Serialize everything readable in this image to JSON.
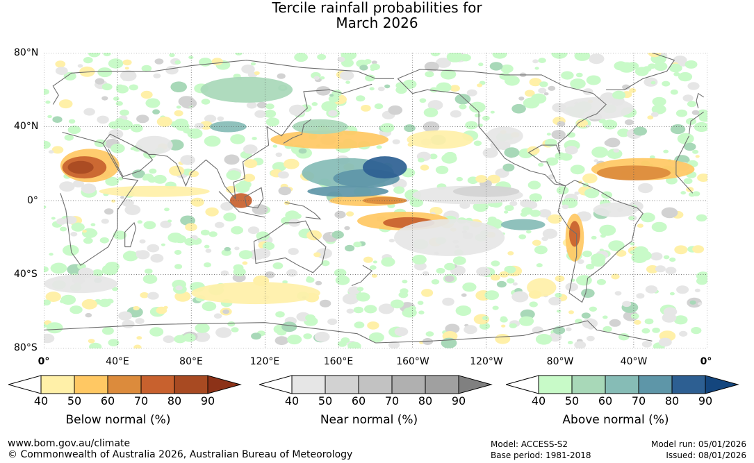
{
  "header": {
    "title_line1": "Tercile rainfall probabilities for",
    "title_line2": "March 2026"
  },
  "map": {
    "lat_labels": [
      "80°N",
      "40°N",
      "0°",
      "40°S",
      "80°S"
    ],
    "lon_labels": [
      "0°",
      "40°E",
      "80°E",
      "120°E",
      "160°E",
      "160°W",
      "120°W",
      "80°W",
      "40°W",
      "0°"
    ],
    "colors": {
      "below": [
        "#fff0a8",
        "#ffc863",
        "#dc8b3c",
        "#c8612e",
        "#a84a22",
        "#8c3218"
      ],
      "near": [
        "#e6e6e6",
        "#d2d2d2",
        "#c2c2c2",
        "#b0b0b0",
        "#a0a0a0",
        "#808080"
      ],
      "above": [
        "#c8fac8",
        "#a8d8b8",
        "#86bcb6",
        "#5e96a8",
        "#2d5f92",
        "#14467e"
      ],
      "coast": "#6e6e6e"
    }
  },
  "legends": [
    {
      "title": "Below normal (%)",
      "ticks": [
        "40",
        "50",
        "60",
        "70",
        "80",
        "90"
      ],
      "palette": "below"
    },
    {
      "title": "Near normal (%)",
      "ticks": [
        "40",
        "50",
        "60",
        "70",
        "80",
        "90"
      ],
      "palette": "near"
    },
    {
      "title": "Above normal (%)",
      "ticks": [
        "40",
        "50",
        "60",
        "70",
        "80",
        "90"
      ],
      "palette": "above"
    }
  ],
  "footer": {
    "url": "www.bom.gov.au/climate",
    "copyright": "© Commonwealth of Australia 2026, Australian Bureau of Meteorology",
    "model": "Model: ACCESS-S2",
    "base_period": "Base period: 1981-2018",
    "model_run": "Model run: 05/01/2026",
    "issued": "Issued: 08/01/2026"
  }
}
